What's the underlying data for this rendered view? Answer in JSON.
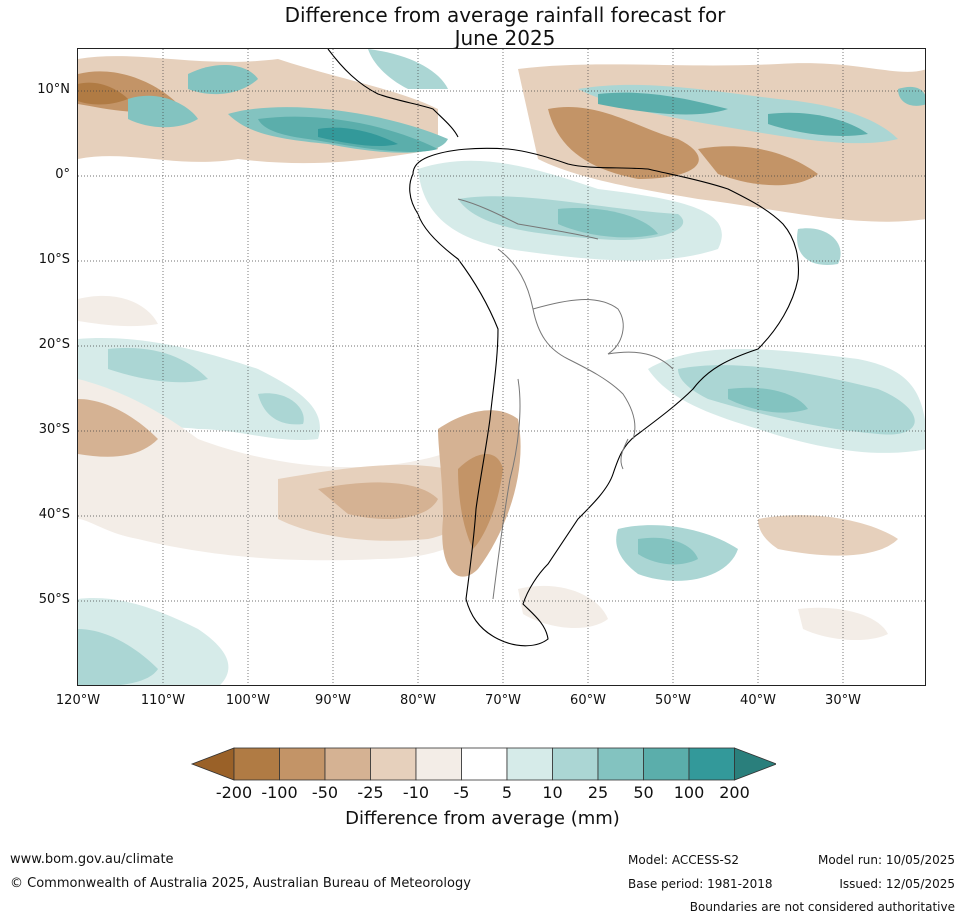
{
  "title": {
    "line1": "Difference from average rainfall forecast for",
    "line2": "June 2025"
  },
  "map": {
    "lat_labels": [
      "10°N",
      "0°",
      "10°S",
      "20°S",
      "30°S",
      "40°S",
      "50°S"
    ],
    "lon_labels": [
      "120°W",
      "110°W",
      "100°W",
      "90°W",
      "80°W",
      "70°W",
      "60°W",
      "50°W",
      "40°W",
      "30°W"
    ],
    "grid": true
  },
  "colorbar": {
    "title": "Difference from average (mm)",
    "tick_labels": [
      "-200",
      "-100",
      "-50",
      "-25",
      "-10",
      "-5",
      "5",
      "10",
      "25",
      "50",
      "100",
      "200"
    ],
    "colors": [
      "#9a6128",
      "#b07b44",
      "#c39467",
      "#d5b293",
      "#e6d0bc",
      "#f3ede7",
      "#ffffff",
      "#d6ebe9",
      "#abd6d4",
      "#83c3c0",
      "#5baeab",
      "#33999a",
      "#2a7f7c"
    ],
    "extend": "both"
  },
  "footer": {
    "website": "www.bom.gov.au/climate",
    "copyright": "© Commonwealth of Australia 2025, Australian Bureau of Meteorology",
    "model": "Model: ACCESS-S2",
    "base_period": "Base period: 1981-2018",
    "model_run": "Model run: 10/05/2025",
    "issued": "Issued: 12/05/2025",
    "disclaimer": "Boundaries are not considered authoritative"
  }
}
